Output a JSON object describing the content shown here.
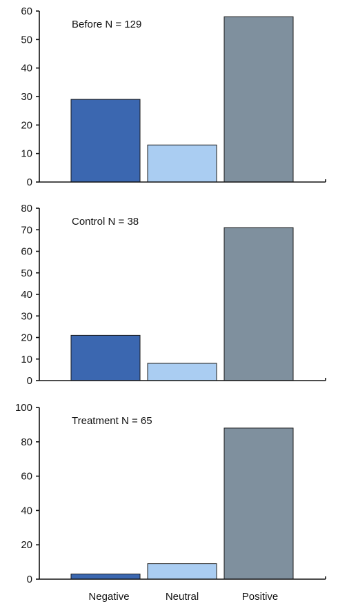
{
  "chart_data": [
    {
      "type": "bar",
      "title": "",
      "label": "Before N = 129",
      "categories": [
        "Negative",
        "Neutral",
        "Positive"
      ],
      "values": [
        29,
        13,
        58
      ],
      "ylim": [
        0,
        60
      ],
      "yticks": [
        0,
        10,
        20,
        30,
        40,
        50,
        60
      ],
      "xlabel": "",
      "ylabel": "",
      "colors": [
        "#3b67b0",
        "#aacdf2",
        "#7f909e"
      ],
      "grid": false
    },
    {
      "type": "bar",
      "title": "",
      "label": "Control N = 38",
      "categories": [
        "Negative",
        "Neutral",
        "Positive"
      ],
      "values": [
        21,
        8,
        71
      ],
      "ylim": [
        0,
        80
      ],
      "yticks": [
        0,
        10,
        20,
        30,
        40,
        50,
        60,
        70,
        80
      ],
      "xlabel": "",
      "ylabel": "",
      "colors": [
        "#3b67b0",
        "#aacdf2",
        "#7f909e"
      ],
      "grid": false
    },
    {
      "type": "bar",
      "title": "",
      "label": "Treatment N = 65",
      "categories": [
        "Negative",
        "Neutral",
        "Positive"
      ],
      "values": [
        3,
        9,
        88
      ],
      "ylim": [
        0,
        100
      ],
      "yticks": [
        0,
        20,
        40,
        60,
        80,
        100
      ],
      "xlabel": "",
      "ylabel": "",
      "colors": [
        "#3b67b0",
        "#aacdf2",
        "#7f909e"
      ],
      "grid": false
    }
  ]
}
